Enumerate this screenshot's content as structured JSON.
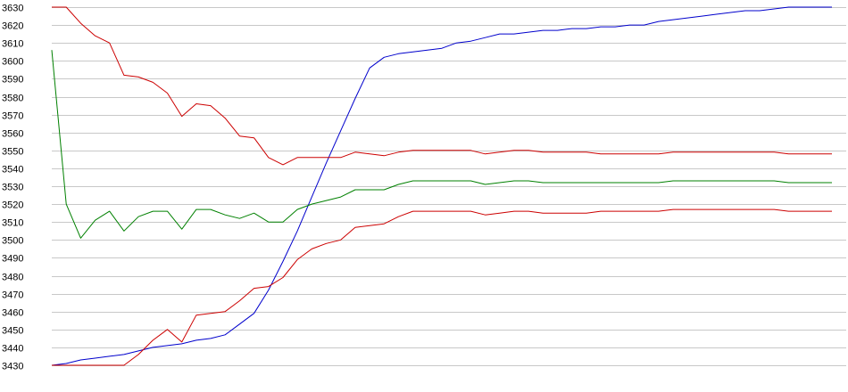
{
  "chart_data": {
    "type": "line",
    "title": "",
    "xlabel": "",
    "ylabel": "",
    "ylim": [
      3430,
      3630
    ],
    "yticks": [
      3430,
      3440,
      3450,
      3460,
      3470,
      3480,
      3490,
      3500,
      3510,
      3520,
      3530,
      3540,
      3550,
      3560,
      3570,
      3580,
      3590,
      3600,
      3610,
      3620,
      3630
    ],
    "grid": true,
    "legend": "none",
    "x": [
      0,
      1,
      2,
      3,
      4,
      5,
      6,
      7,
      8,
      9,
      10,
      11,
      12,
      13,
      14,
      15,
      16,
      17,
      18,
      19,
      20,
      21,
      22,
      23,
      24,
      25,
      26,
      27,
      28,
      29,
      30,
      31,
      32,
      33,
      34,
      35,
      36,
      37,
      38,
      39,
      40,
      41,
      42,
      43,
      44,
      45,
      46,
      47,
      48,
      49,
      50,
      51,
      52,
      53,
      54
    ],
    "xlim": [
      0,
      54
    ],
    "series": [
      {
        "color": "#0000cc",
        "values": [
          3430,
          3431,
          3433,
          3434,
          3435,
          3436,
          3438,
          3440,
          3441,
          3442,
          3444,
          3445,
          3447,
          3453,
          3459,
          3472,
          3488,
          3505,
          3524,
          3543,
          3561,
          3579,
          3596,
          3602,
          3604,
          3605,
          3606,
          3607,
          3610,
          3611,
          3613,
          3615,
          3615,
          3616,
          3617,
          3617,
          3618,
          3618,
          3619,
          3619,
          3620,
          3620,
          3622,
          3623,
          3624,
          3625,
          3626,
          3627,
          3628,
          3628,
          3629,
          3630,
          3630,
          3630,
          3630
        ]
      },
      {
        "color": "#cc0000",
        "values": [
          3630,
          3630,
          3621,
          3614,
          3610,
          3592,
          3591,
          3588,
          3582,
          3569,
          3576,
          3575,
          3568,
          3558,
          3557,
          3546,
          3542,
          3546,
          3546,
          3546,
          3546,
          3549,
          3548,
          3547,
          3549,
          3550,
          3550,
          3550,
          3550,
          3550,
          3548,
          3549,
          3550,
          3550,
          3549,
          3549,
          3549,
          3549,
          3548,
          3548,
          3548,
          3548,
          3548,
          3549,
          3549,
          3549,
          3549,
          3549,
          3549,
          3549,
          3549,
          3548,
          3548,
          3548,
          3548
        ]
      },
      {
        "color": "#008000",
        "values": [
          3606,
          3520,
          3501,
          3511,
          3516,
          3505,
          3513,
          3516,
          3516,
          3506,
          3517,
          3517,
          3514,
          3512,
          3515,
          3510,
          3510,
          3517,
          3520,
          3522,
          3524,
          3528,
          3528,
          3528,
          3531,
          3533,
          3533,
          3533,
          3533,
          3533,
          3531,
          3532,
          3533,
          3533,
          3532,
          3532,
          3532,
          3532,
          3532,
          3532,
          3532,
          3532,
          3532,
          3533,
          3533,
          3533,
          3533,
          3533,
          3533,
          3533,
          3533,
          3532,
          3532,
          3532,
          3532
        ]
      },
      {
        "color": "#cc0000",
        "values": [
          3430,
          3430,
          3430,
          3430,
          3430,
          3430,
          3436,
          3444,
          3450,
          3443,
          3458,
          3459,
          3460,
          3466,
          3473,
          3474,
          3479,
          3489,
          3495,
          3498,
          3500,
          3507,
          3508,
          3509,
          3513,
          3516,
          3516,
          3516,
          3516,
          3516,
          3514,
          3515,
          3516,
          3516,
          3515,
          3515,
          3515,
          3515,
          3516,
          3516,
          3516,
          3516,
          3516,
          3517,
          3517,
          3517,
          3517,
          3517,
          3517,
          3517,
          3517,
          3516,
          3516,
          3516,
          3516
        ]
      }
    ]
  }
}
